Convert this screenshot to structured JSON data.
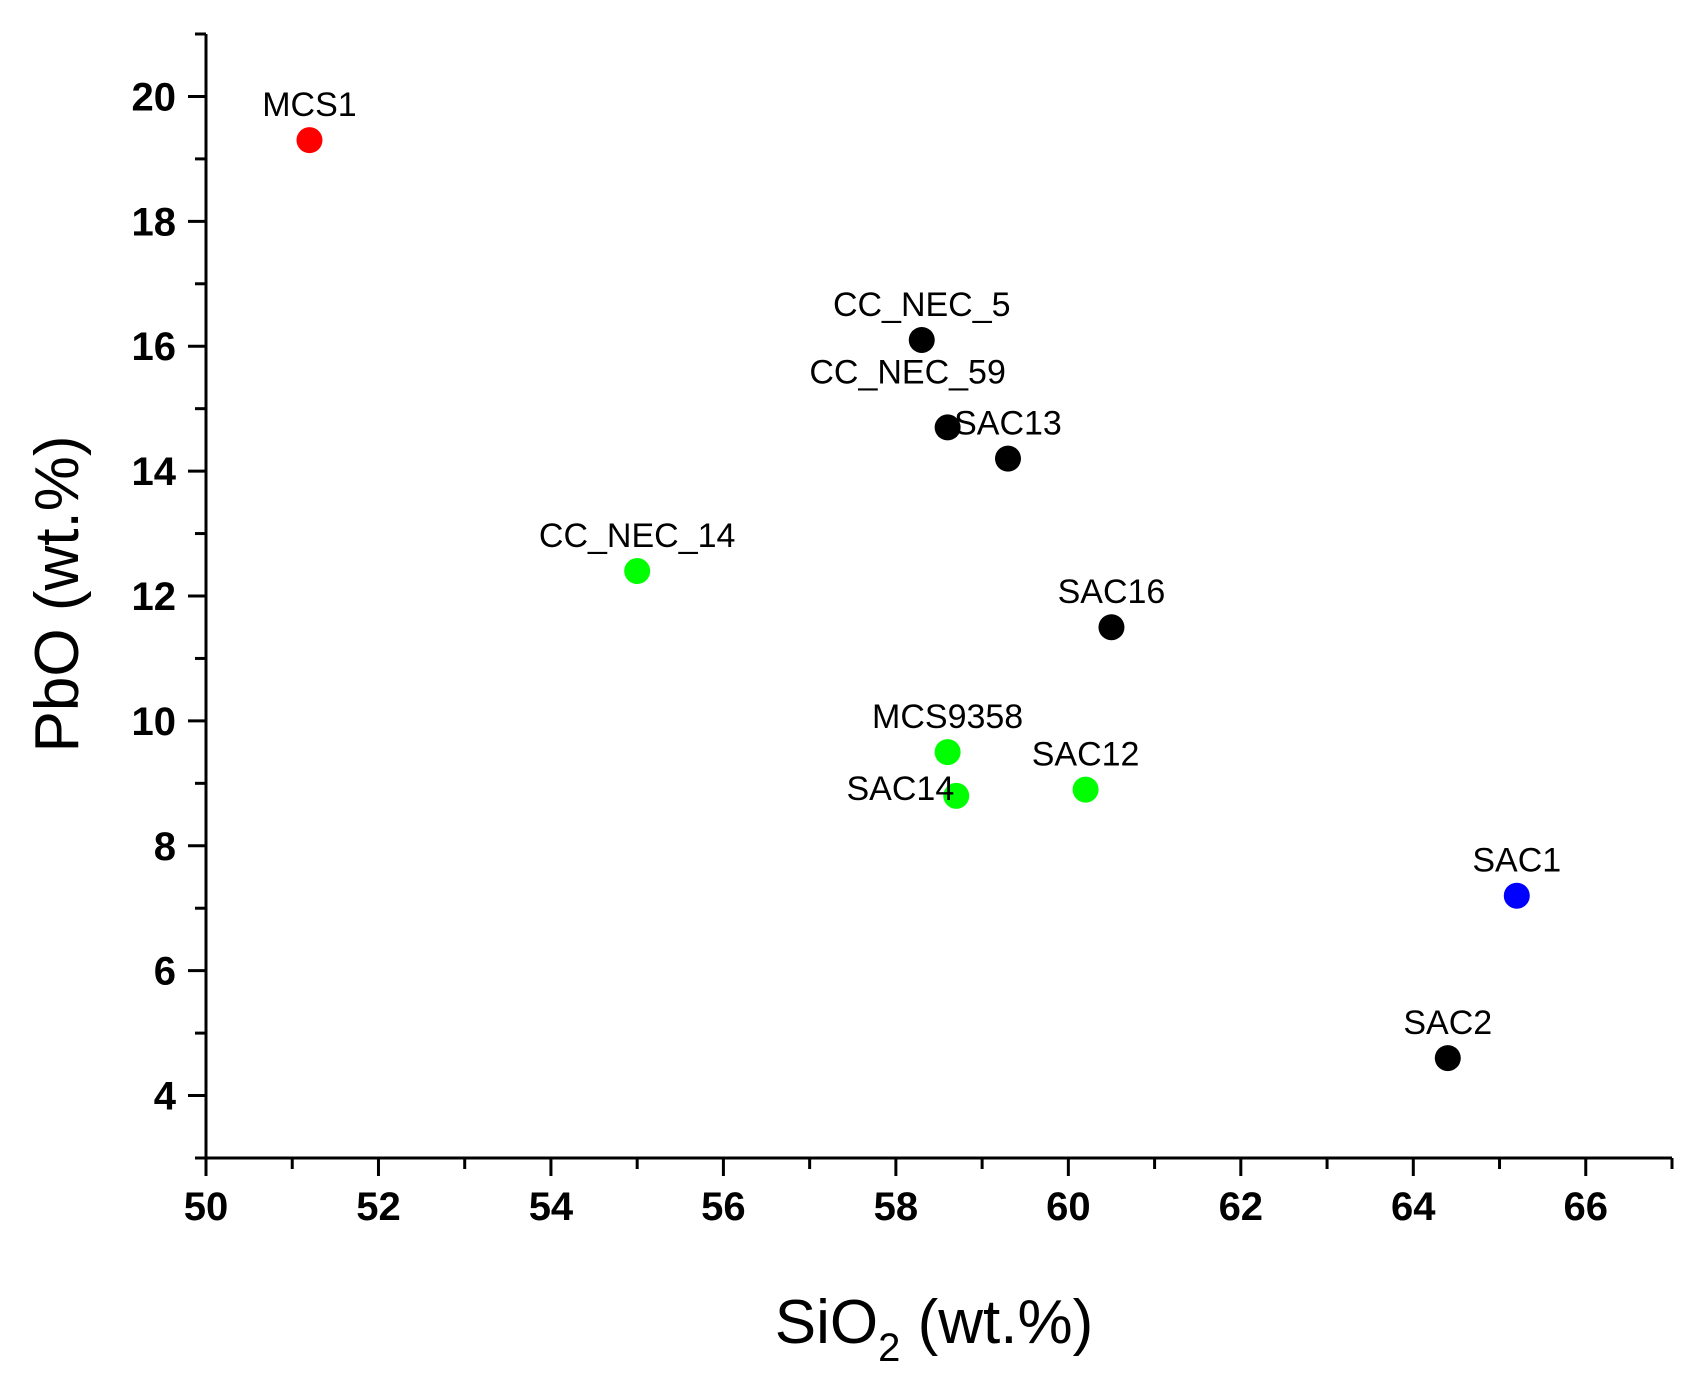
{
  "chart_data": {
    "type": "scatter",
    "title": "",
    "xlabel": {
      "main": "SiO",
      "subscript": "2",
      "suffix": " (wt.%)"
    },
    "ylabel": "PbO (wt.%)",
    "xlim": [
      50,
      67
    ],
    "ylim": [
      3,
      21
    ],
    "x_ticks": [
      50,
      52,
      54,
      56,
      58,
      60,
      62,
      64,
      66
    ],
    "y_ticks": [
      4,
      6,
      8,
      10,
      12,
      14,
      16,
      18,
      20
    ],
    "x_tick_labels": [
      "50",
      "52",
      "54",
      "56",
      "58",
      "60",
      "62",
      "64",
      "66"
    ],
    "y_tick_labels": [
      "4",
      "6",
      "8",
      "10",
      "12",
      "14",
      "16",
      "18",
      "20"
    ],
    "grid": false,
    "legend": "none",
    "colors": {
      "red": "#ff0000",
      "black": "#000000",
      "green": "#00ff00",
      "blue": "#0000ff"
    },
    "points": [
      {
        "label": "MCS1",
        "x": 51.2,
        "y": 19.3,
        "color": "#ff0000",
        "label_pos": "above"
      },
      {
        "label": "CC_NEC_5",
        "x": 58.3,
        "y": 16.1,
        "color": "#000000",
        "label_pos": "above"
      },
      {
        "label": "CC_NEC_59",
        "x": 58.6,
        "y": 14.7,
        "color": "#000000",
        "label_pos": "above-left"
      },
      {
        "label": "SAC13",
        "x": 59.3,
        "y": 14.2,
        "color": "#000000",
        "label_pos": "above"
      },
      {
        "label": "CC_NEC_14",
        "x": 55.0,
        "y": 12.4,
        "color": "#00ff00",
        "label_pos": "above"
      },
      {
        "label": "SAC16",
        "x": 60.5,
        "y": 11.5,
        "color": "#000000",
        "label_pos": "above"
      },
      {
        "label": "MCS9358",
        "x": 58.6,
        "y": 9.5,
        "color": "#00ff00",
        "label_pos": "above"
      },
      {
        "label": "SAC14",
        "x": 58.7,
        "y": 8.8,
        "color": "#00ff00",
        "label_pos": "left"
      },
      {
        "label": "SAC12",
        "x": 60.2,
        "y": 8.9,
        "color": "#00ff00",
        "label_pos": "above"
      },
      {
        "label": "SAC1",
        "x": 65.2,
        "y": 7.2,
        "color": "#0000ff",
        "label_pos": "above"
      },
      {
        "label": "SAC2",
        "x": 64.4,
        "y": 4.6,
        "color": "#000000",
        "label_pos": "above"
      }
    ]
  }
}
